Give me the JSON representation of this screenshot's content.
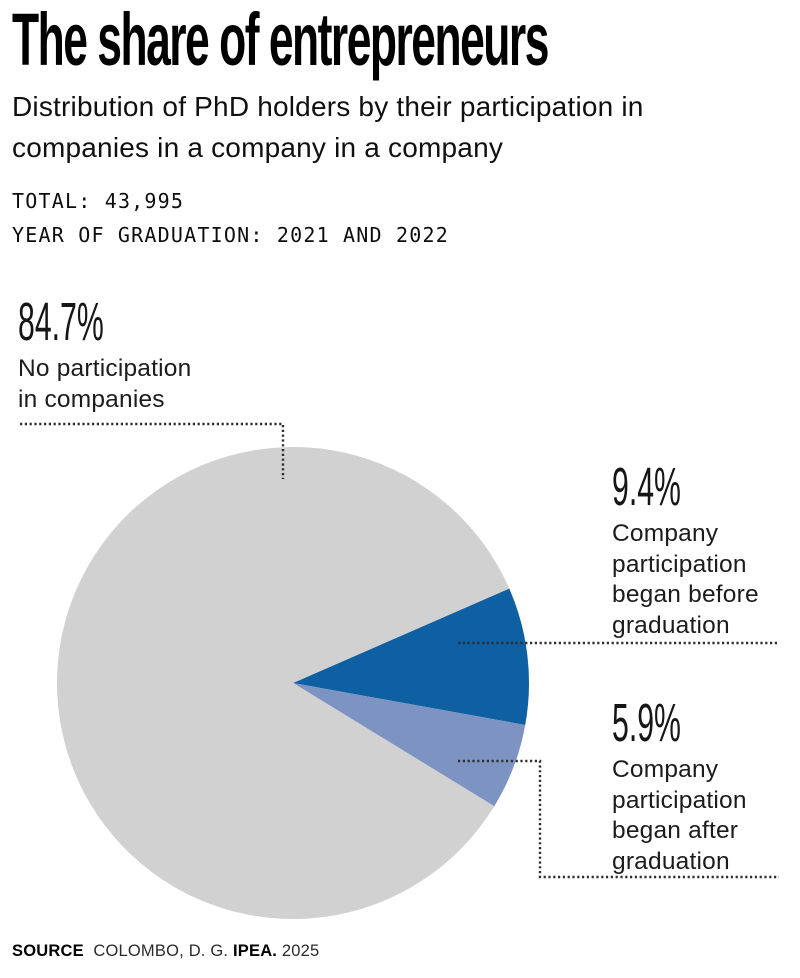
{
  "header": {
    "title": "The share of entrepreneurs",
    "subtitle": "Distribution of PhD holders by their participation in\ncompanies in a company in a company",
    "meta": [
      {
        "label": "TOTAL:",
        "value": "43,995"
      },
      {
        "label": "YEAR OF GRADUATION:",
        "value": "2021 AND 2022"
      }
    ]
  },
  "chart_data": {
    "type": "pie",
    "title": "The share of entrepreneurs",
    "total_label": "TOTAL: 43,995",
    "total": 43995,
    "year_of_graduation": "2021 AND 2022",
    "start_angle_deg": -23.6,
    "direction": "clockwise",
    "legend_position": "callouts",
    "slices": [
      {
        "id": "before-graduation",
        "label": "Company participation began before graduation",
        "value": 9.4,
        "color": "#0f5fa3"
      },
      {
        "id": "after-graduation",
        "label": "Company participation began after graduation",
        "value": 5.9,
        "color": "#7d94c3"
      },
      {
        "id": "no-participation",
        "label": "No participation in companies",
        "value": 84.7,
        "color": "#d1d1d1"
      }
    ]
  },
  "callouts": [
    {
      "pct": "84.7%",
      "label": "No participation\nin companies"
    },
    {
      "pct": "9.4%",
      "label": "Company\nparticipation\nbegan before\ngraduation"
    },
    {
      "pct": "5.9%",
      "label": "Company\nparticipation\nbegan after\ngraduation"
    }
  ],
  "source": {
    "label": "SOURCE",
    "authors": "COLOMBO, D. G.",
    "publisher": "IPEA.",
    "year": "2025"
  },
  "colors": {
    "background": "#ffffff",
    "slice_no_participation": "#d1d1d1",
    "slice_before_graduation": "#0f5fa3",
    "slice_after_graduation": "#7d94c3",
    "leader_line": "#2e2e2e",
    "text": "#111111"
  }
}
